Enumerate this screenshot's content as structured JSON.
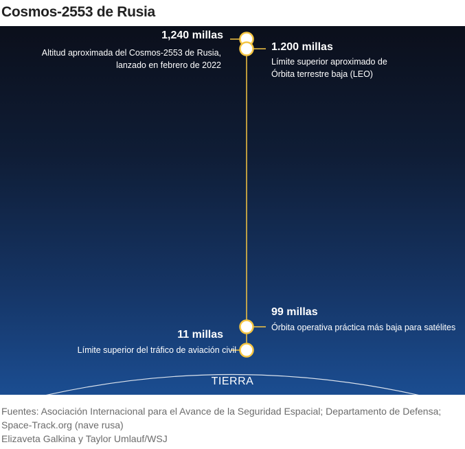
{
  "title": "Cosmos-2553 de Rusia",
  "markers": [
    {
      "value": "1,240 millas",
      "description": [
        "Altitud aproximada del Cosmos-2553 de Rusia,",
        "lanzado en febrero de 2022"
      ]
    },
    {
      "value": "1.200 millas",
      "description": [
        "Límite superior aproximado de",
        "Órbita terrestre baja (LEO)"
      ]
    },
    {
      "value": "99 millas",
      "description": [
        "Órbita operativa práctica más baja para satélites"
      ]
    },
    {
      "value": "11 millas",
      "description": [
        "Límite superior del tráfico de aviación civil"
      ]
    }
  ],
  "earth_label": "TIERRA",
  "footer": {
    "sources": "Fuentes: Asociación Internacional para el Avance de la Seguridad Espacial; Departamento de Defensa; Space-Track.org (nave rusa)",
    "credits": "Elizaveta Galkina y Taylor Umlauf/WSJ"
  },
  "colors": {
    "accent": "#f5c542",
    "sky_top": "#0b0f1b",
    "sky_bottom": "#1b4d91"
  }
}
